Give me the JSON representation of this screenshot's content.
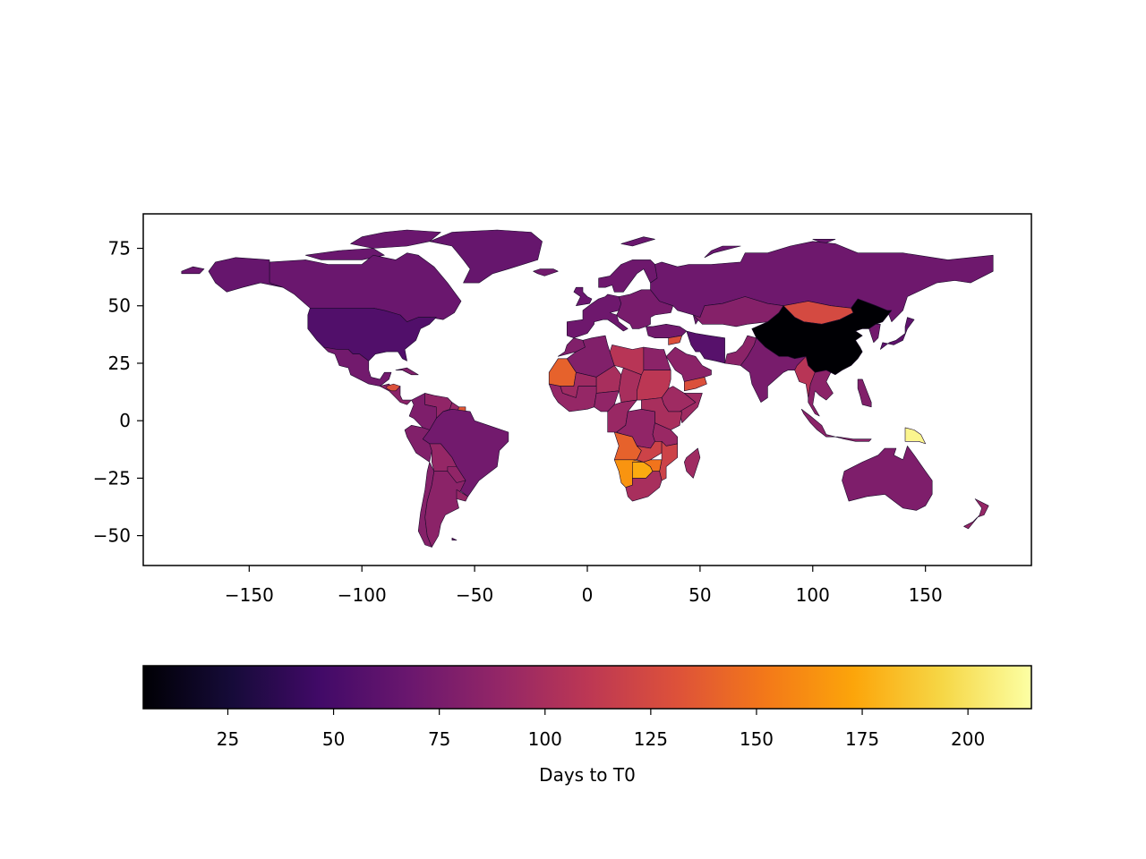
{
  "chart_data": {
    "type": "choropleth",
    "colormap": "inferno",
    "x_axis": {
      "ticks": [
        -150,
        -100,
        -50,
        0,
        50,
        100,
        150
      ],
      "tick_labels": [
        "−150",
        "−100",
        "−50",
        "0",
        "50",
        "100",
        "150"
      ],
      "range": [
        -197,
        197
      ]
    },
    "y_axis": {
      "ticks": [
        75,
        50,
        25,
        0,
        -25,
        -50
      ],
      "tick_labels": [
        "75",
        "50",
        "25",
        "0",
        "−25",
        "−50"
      ],
      "range": [
        -63,
        90
      ]
    },
    "colorbar": {
      "label": "Days to T0",
      "range": [
        5,
        215
      ],
      "ticks": [
        25,
        50,
        75,
        100,
        125,
        150,
        175,
        200
      ],
      "tick_labels": [
        "25",
        "50",
        "75",
        "100",
        "125",
        "150",
        "175",
        "200"
      ],
      "orientation": "horizontal"
    },
    "regions": [
      {
        "name": "Canada",
        "value": 68
      },
      {
        "name": "Alaska (USA)",
        "value": 66
      },
      {
        "name": "United States",
        "value": 55
      },
      {
        "name": "Greenland",
        "value": 66
      },
      {
        "name": "Mexico",
        "value": 72
      },
      {
        "name": "Central America",
        "value": 85
      },
      {
        "name": "Honduras",
        "value": 130
      },
      {
        "name": "Cuba",
        "value": 80
      },
      {
        "name": "Colombia",
        "value": 78
      },
      {
        "name": "Venezuela",
        "value": 88
      },
      {
        "name": "Guyana",
        "value": 90
      },
      {
        "name": "Suriname",
        "value": 135
      },
      {
        "name": "Brazil",
        "value": 72
      },
      {
        "name": "Peru",
        "value": 80
      },
      {
        "name": "Bolivia",
        "value": 90
      },
      {
        "name": "Paraguay",
        "value": 88
      },
      {
        "name": "Chile",
        "value": 82
      },
      {
        "name": "Argentina",
        "value": 85
      },
      {
        "name": "Uruguay",
        "value": 90
      },
      {
        "name": "Western Europe",
        "value": 70
      },
      {
        "name": "Eastern Europe",
        "value": 75
      },
      {
        "name": "Scandinavia",
        "value": 70
      },
      {
        "name": "Iceland",
        "value": 72
      },
      {
        "name": "United Kingdom",
        "value": 68
      },
      {
        "name": "Russia",
        "value": 70
      },
      {
        "name": "Kazakhstan",
        "value": 82
      },
      {
        "name": "Mongolia",
        "value": 125
      },
      {
        "name": "China",
        "value": 5
      },
      {
        "name": "India",
        "value": 75
      },
      {
        "name": "Pakistan",
        "value": 85
      },
      {
        "name": "Iran",
        "value": 58
      },
      {
        "name": "Saudi Arabia",
        "value": 85
      },
      {
        "name": "Yemen",
        "value": 130
      },
      {
        "name": "Turkey",
        "value": 72
      },
      {
        "name": "Syria",
        "value": 130
      },
      {
        "name": "Myanmar",
        "value": 108
      },
      {
        "name": "Southeast Asia",
        "value": 85
      },
      {
        "name": "Japan",
        "value": 62
      },
      {
        "name": "Korea",
        "value": 72
      },
      {
        "name": "Indonesia",
        "value": 85
      },
      {
        "name": "Philippines",
        "value": 80
      },
      {
        "name": "Papua New Guinea",
        "value": 210
      },
      {
        "name": "Australia",
        "value": 78
      },
      {
        "name": "New Zealand",
        "value": 90
      },
      {
        "name": "Morocco",
        "value": 80
      },
      {
        "name": "Algeria",
        "value": 80
      },
      {
        "name": "Libya",
        "value": 108
      },
      {
        "name": "Egypt",
        "value": 85
      },
      {
        "name": "Mauritania",
        "value": 140
      },
      {
        "name": "Mali",
        "value": 95
      },
      {
        "name": "Niger",
        "value": 100
      },
      {
        "name": "Chad",
        "value": 100
      },
      {
        "name": "Sudan",
        "value": 110
      },
      {
        "name": "Ethiopia",
        "value": 95
      },
      {
        "name": "Somalia",
        "value": 95
      },
      {
        "name": "West Africa",
        "value": 90
      },
      {
        "name": "Nigeria",
        "value": 88
      },
      {
        "name": "Central Africa",
        "value": 92
      },
      {
        "name": "DR Congo",
        "value": 88
      },
      {
        "name": "East Africa",
        "value": 100
      },
      {
        "name": "Tanzania",
        "value": 92
      },
      {
        "name": "Angola",
        "value": 140
      },
      {
        "name": "Zambia",
        "value": 120
      },
      {
        "name": "Mozambique",
        "value": 120
      },
      {
        "name": "Namibia",
        "value": 165
      },
      {
        "name": "Botswana",
        "value": 175
      },
      {
        "name": "Zimbabwe",
        "value": 150
      },
      {
        "name": "South Africa",
        "value": 100
      },
      {
        "name": "Madagascar",
        "value": 95
      }
    ]
  }
}
